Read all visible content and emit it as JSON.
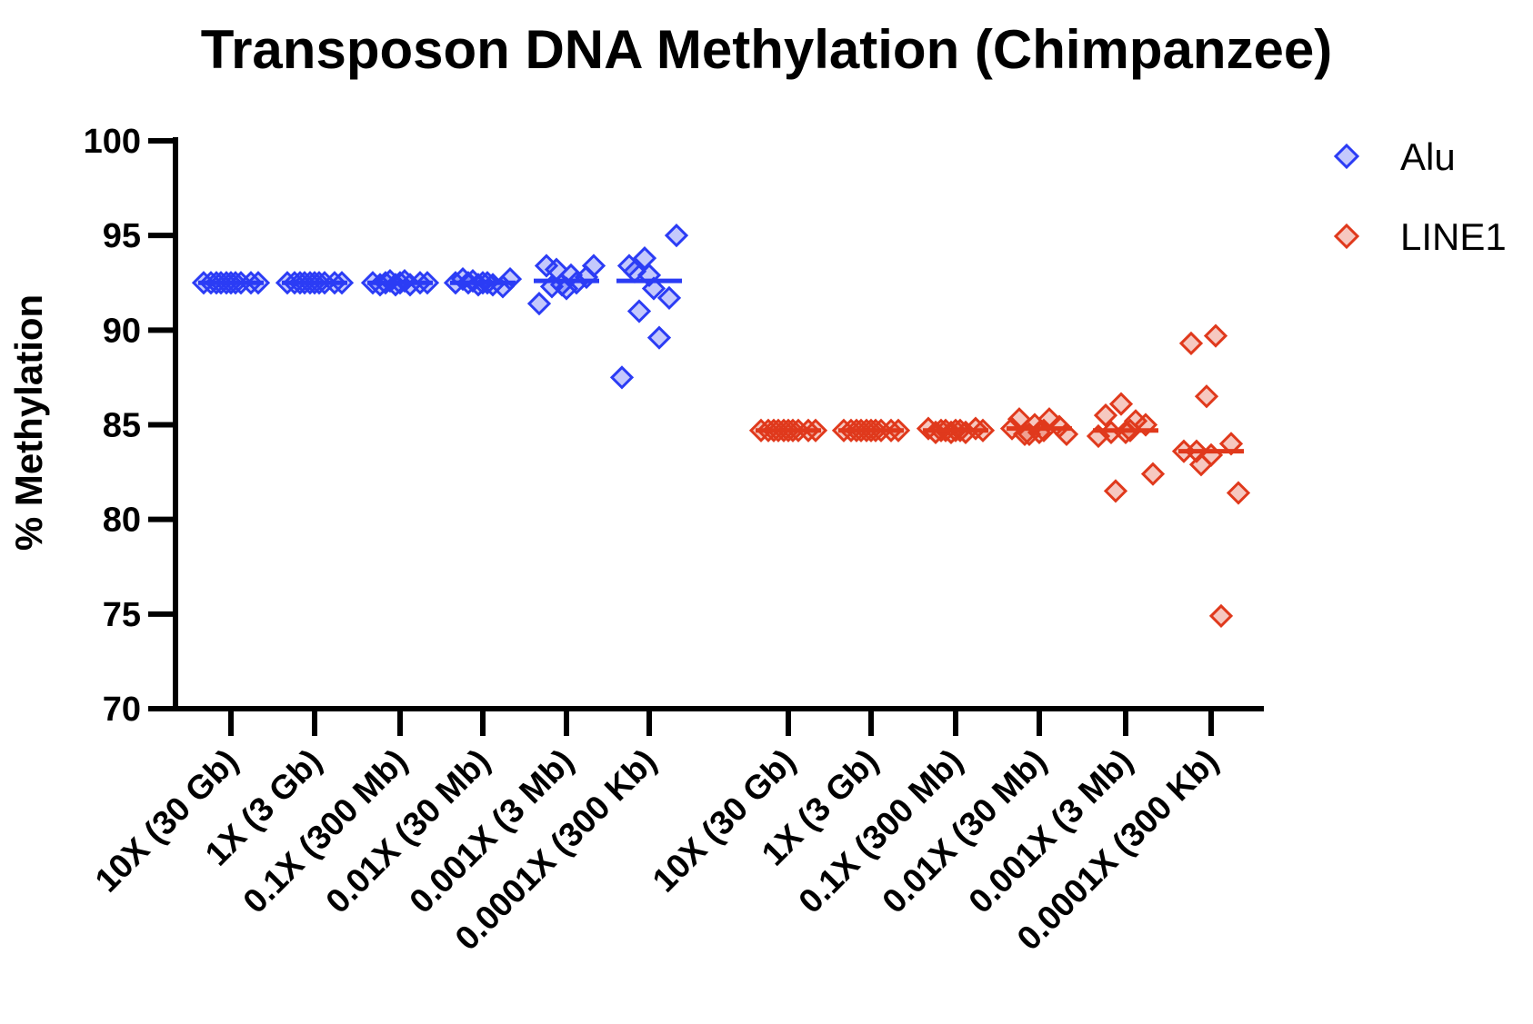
{
  "chart_data": {
    "type": "scatter",
    "title": "Transposon DNA Methylation (Chimpanzee)",
    "xlabel": "",
    "ylabel": "% Methylation",
    "ylim": [
      70,
      100
    ],
    "yticks": [
      70,
      75,
      80,
      85,
      90,
      95,
      100
    ],
    "grid": false,
    "legend_position": "top-right",
    "colors": {
      "Alu": "#2b3cf5",
      "LINE1": "#e0391c"
    },
    "series": [
      {
        "name": "Alu",
        "categories": [
          "10X (30 Gb)",
          "1X (3 Gb)",
          "0.1X (300 Mb)",
          "0.01X (30 Mb)",
          "0.001X (3 Mb)",
          "0.0001X (300 Kb)"
        ],
        "points": [
          [
            92.5,
            92.5,
            92.5,
            92.5,
            92.5,
            92.5,
            92.5,
            92.5,
            92.5,
            92.5
          ],
          [
            92.5,
            92.5,
            92.5,
            92.5,
            92.5,
            92.5,
            92.5,
            92.5,
            92.5,
            92.5
          ],
          [
            92.5,
            92.4,
            92.5,
            92.6,
            92.4,
            92.5,
            92.5,
            92.4,
            92.6,
            92.5
          ],
          [
            92.5,
            92.7,
            92.3,
            92.6,
            92.4,
            92.5,
            92.7,
            92.4,
            92.5,
            92.5
          ],
          [
            92.2,
            93.4,
            92.8,
            93.2,
            92.5,
            91.4,
            93.4,
            92.4,
            92.9,
            92.3
          ],
          [
            92.9,
            93.4,
            91.7,
            91.0,
            89.6,
            87.5,
            95.0,
            93.8,
            92.2,
            93.1
          ]
        ],
        "medians": [
          92.5,
          92.5,
          92.5,
          92.5,
          92.6,
          92.6
        ]
      },
      {
        "name": "LINE1",
        "categories": [
          "10X (30 Gb)",
          "1X (3 Gb)",
          "0.1X (300 Mb)",
          "0.01X (30 Mb)",
          "0.001X (3 Mb)",
          "0.0001X (300 Kb)"
        ],
        "points": [
          [
            84.7,
            84.7,
            84.7,
            84.7,
            84.7,
            84.7,
            84.7,
            84.7,
            84.7,
            84.7
          ],
          [
            84.7,
            84.7,
            84.7,
            84.7,
            84.7,
            84.7,
            84.7,
            84.7,
            84.7,
            84.7
          ],
          [
            84.7,
            84.6,
            84.8,
            84.7,
            84.6,
            84.8,
            84.7,
            84.6,
            84.7,
            84.7
          ],
          [
            84.6,
            85.3,
            84.9,
            84.5,
            85.3,
            84.8,
            84.5,
            85.0,
            84.7,
            84.5
          ],
          [
            84.6,
            85.5,
            85.0,
            81.5,
            85.2,
            84.4,
            82.4,
            86.1,
            84.7,
            84.6
          ],
          [
            83.4,
            89.3,
            84.0,
            82.9,
            74.9,
            83.6,
            81.4,
            86.5,
            89.7,
            83.6
          ]
        ],
        "medians": [
          84.7,
          84.7,
          84.7,
          84.8,
          84.7,
          83.6
        ]
      }
    ]
  }
}
